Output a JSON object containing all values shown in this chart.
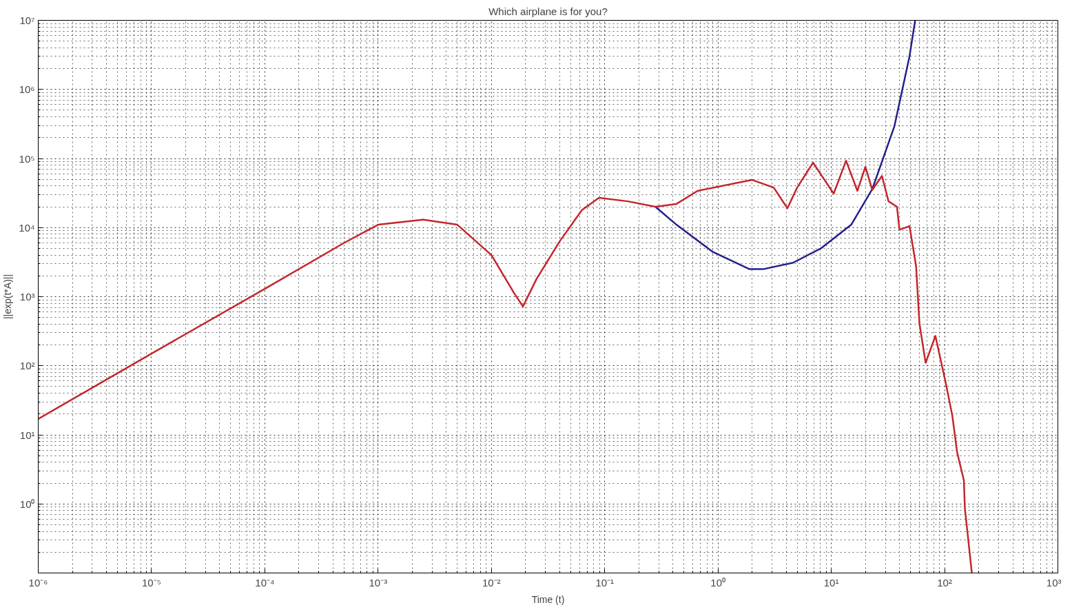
{
  "chart_data": {
    "type": "line",
    "title": "Which airplane is for you?",
    "xlabel": "Time (t)",
    "ylabel": "||exp(t*A)||",
    "log": "xy",
    "grid": true,
    "xlim": [
      1e-06,
      1000
    ],
    "ylim": [
      0.1,
      10000000
    ],
    "xticks": [
      {
        "value": 1e-06,
        "label": "10⁻⁶"
      },
      {
        "value": 1e-05,
        "label": "10⁻⁵"
      },
      {
        "value": 0.0001,
        "label": "10⁻⁴"
      },
      {
        "value": 0.001,
        "label": "10⁻³"
      },
      {
        "value": 0.01,
        "label": "10⁻²"
      },
      {
        "value": 0.1,
        "label": "10⁻¹"
      },
      {
        "value": 1,
        "label": "10⁰"
      },
      {
        "value": 10,
        "label": "10¹"
      },
      {
        "value": 100,
        "label": "10²"
      },
      {
        "value": 1000,
        "label": "10³"
      }
    ],
    "yticks": [
      {
        "value": 0.1,
        "label": null
      },
      {
        "value": 1,
        "label": "10⁰"
      },
      {
        "value": 10,
        "label": "10¹"
      },
      {
        "value": 100,
        "label": "10²"
      },
      {
        "value": 1000,
        "label": "10³"
      },
      {
        "value": 10000,
        "label": "10⁴"
      },
      {
        "value": 100000,
        "label": "10⁵"
      },
      {
        "value": 1000000,
        "label": "10⁶"
      },
      {
        "value": 10000000,
        "label": "10⁷"
      }
    ],
    "series": [
      {
        "color": "#22208c",
        "x": [
          0.28,
          0.43,
          0.89,
          1.9,
          2.5,
          4.6,
          8.1,
          15,
          23,
          36,
          49,
          55
        ],
        "values": [
          20000,
          11000,
          4500,
          2500,
          2500,
          3100,
          5000,
          11000,
          36000,
          290000,
          3000000,
          10000000
        ]
      },
      {
        "color": "#c4262b",
        "x": [
          1e-06,
          1e-05,
          0.0001,
          0.0005,
          0.001,
          0.0025,
          0.005,
          0.01,
          0.016,
          0.019,
          0.025,
          0.04,
          0.063,
          0.089,
          0.16,
          0.28,
          0.43,
          0.66,
          2.0,
          3.1,
          4.1,
          5.0,
          6.9,
          10.5,
          13.5,
          17,
          20,
          23,
          28,
          32,
          38,
          40,
          49,
          56,
          60,
          68,
          83,
          102,
          117,
          129,
          148,
          151,
          174
        ],
        "values": [
          17,
          150,
          1300,
          6000,
          11000,
          13000,
          11000,
          4000,
          1100,
          720,
          1800,
          6300,
          18000,
          27000,
          24000,
          20000,
          22000,
          34000,
          49000,
          38000,
          19000,
          38000,
          87000,
          31000,
          93000,
          34000,
          76000,
          35000,
          56000,
          24000,
          20000,
          9300,
          10500,
          2800,
          410,
          110,
          270,
          58,
          19,
          5.6,
          2.2,
          0.87,
          0.1
        ]
      }
    ]
  }
}
